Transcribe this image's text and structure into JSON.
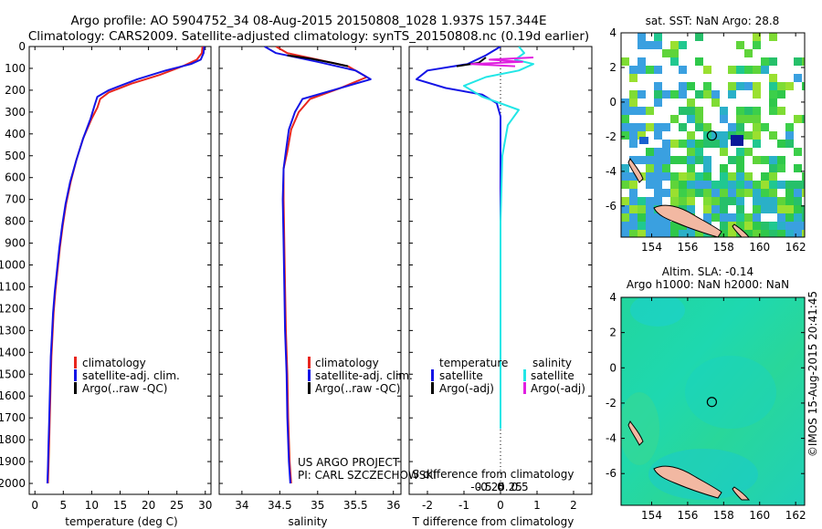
{
  "title_line1": "Argo profile: AO 5904752_34 08-Aug-2015 20150808_1028 1.937S 157.344E",
  "title_line2": "Climatology: CARS2009. Satellite-adjusted climatology: synTS_20150808.nc (0.19d earlier)",
  "credit_line1": "US ARGO PROJECT",
  "credit_line2": "PI: CARL SZCZECHOWSKI",
  "timestamp": "©IMOS 15-Aug-2015 20:41:45",
  "colors": {
    "clim": "#e8261e",
    "sat": "#1414e6",
    "argo": "#000000",
    "sal_sat": "#22e6e6",
    "sal_argo": "#e020e0"
  },
  "chart_data": [
    {
      "type": "line",
      "id": "temperature",
      "xlabel": "temperature (deg C)",
      "xlim": [
        -1,
        31
      ],
      "ylim": [
        0,
        2050
      ],
      "xticks": [
        0,
        5,
        10,
        15,
        20,
        25,
        30
      ],
      "yticks": [
        0,
        100,
        200,
        300,
        400,
        500,
        600,
        700,
        800,
        900,
        1000,
        1100,
        1200,
        1300,
        1400,
        1500,
        1600,
        1700,
        1800,
        1900,
        2000
      ],
      "legend": [
        "climatology",
        "satellite-adj. clim.",
        "Argo(..raw -QC)"
      ],
      "series": [
        {
          "name": "climatology",
          "color": "clim",
          "points": [
            [
              29.5,
              0
            ],
            [
              29.4,
              30
            ],
            [
              28.5,
              60
            ],
            [
              26,
              90
            ],
            [
              22,
              130
            ],
            [
              17,
              170
            ],
            [
              13,
              210
            ],
            [
              11.5,
              240
            ],
            [
              11,
              280
            ],
            [
              10,
              330
            ],
            [
              8.5,
              420
            ],
            [
              7.3,
              520
            ],
            [
              6.3,
              620
            ],
            [
              5.5,
              720
            ],
            [
              4.9,
              820
            ],
            [
              4.4,
              920
            ],
            [
              4,
              1020
            ],
            [
              3.6,
              1120
            ],
            [
              3.3,
              1220
            ],
            [
              3.1,
              1320
            ],
            [
              2.9,
              1420
            ],
            [
              2.8,
              1520
            ],
            [
              2.7,
              1620
            ],
            [
              2.6,
              1720
            ],
            [
              2.5,
              1820
            ],
            [
              2.4,
              1920
            ],
            [
              2.3,
              2000
            ]
          ]
        },
        {
          "name": "satellite-adj. clim.",
          "color": "sat",
          "points": [
            [
              29.8,
              0
            ],
            [
              29.7,
              30
            ],
            [
              29.2,
              60
            ],
            [
              27.5,
              80
            ],
            [
              23,
              110
            ],
            [
              18,
              150
            ],
            [
              13,
              200
            ],
            [
              11,
              230
            ],
            [
              10.5,
              270
            ],
            [
              9.8,
              330
            ],
            [
              8.5,
              420
            ],
            [
              7.3,
              520
            ],
            [
              6.2,
              620
            ],
            [
              5.4,
              720
            ],
            [
              4.8,
              820
            ],
            [
              4.3,
              920
            ],
            [
              3.9,
              1020
            ],
            [
              3.5,
              1120
            ],
            [
              3.2,
              1220
            ],
            [
              3,
              1320
            ],
            [
              2.8,
              1420
            ],
            [
              2.7,
              1520
            ],
            [
              2.6,
              1620
            ],
            [
              2.5,
              1720
            ],
            [
              2.4,
              1820
            ],
            [
              2.3,
              1920
            ],
            [
              2.2,
              2000
            ]
          ]
        }
      ]
    },
    {
      "type": "line",
      "id": "salinity",
      "xlabel": "salinity",
      "xlim": [
        33.7,
        36.1
      ],
      "ylim": [
        0,
        2050
      ],
      "xticks": [
        34,
        34.5,
        35,
        35.5,
        36
      ],
      "legend": [
        "climatology",
        "satellite-adj. clim.",
        "Argo(..raw -QC)"
      ],
      "series": [
        {
          "name": "climatology",
          "color": "clim",
          "points": [
            [
              34.45,
              0
            ],
            [
              34.6,
              30
            ],
            [
              35.0,
              60
            ],
            [
              35.4,
              90
            ],
            [
              35.65,
              140
            ],
            [
              35.3,
              190
            ],
            [
              34.9,
              240
            ],
            [
              34.75,
              300
            ],
            [
              34.65,
              380
            ],
            [
              34.6,
              480
            ],
            [
              34.55,
              560
            ],
            [
              34.55,
              700
            ],
            [
              34.56,
              900
            ],
            [
              34.57,
              1100
            ],
            [
              34.58,
              1300
            ],
            [
              34.6,
              1500
            ],
            [
              34.61,
              1700
            ],
            [
              34.63,
              1900
            ],
            [
              34.65,
              2000
            ]
          ]
        },
        {
          "name": "satellite-adj. clim.",
          "color": "sat",
          "points": [
            [
              34.3,
              0
            ],
            [
              34.45,
              30
            ],
            [
              35.0,
              70
            ],
            [
              35.5,
              110
            ],
            [
              35.7,
              150
            ],
            [
              35.2,
              200
            ],
            [
              34.8,
              240
            ],
            [
              34.7,
              300
            ],
            [
              34.62,
              380
            ],
            [
              34.58,
              480
            ],
            [
              34.55,
              560
            ],
            [
              34.54,
              700
            ],
            [
              34.55,
              900
            ],
            [
              34.56,
              1100
            ],
            [
              34.57,
              1300
            ],
            [
              34.59,
              1500
            ],
            [
              34.6,
              1700
            ],
            [
              34.62,
              1900
            ],
            [
              34.64,
              2000
            ]
          ]
        },
        {
          "name": "Argo(..raw -QC)",
          "color": "argo",
          "points": [
            [
              34.6,
              40
            ],
            [
              34.9,
              55
            ],
            [
              35.2,
              75
            ],
            [
              35.4,
              90
            ]
          ]
        }
      ]
    },
    {
      "type": "line",
      "id": "difference",
      "xlabel": "T difference from climatology",
      "xlabel_top": "S difference from climatology",
      "xlim": [
        -2.5,
        2.5
      ],
      "ylim": [
        0,
        2050
      ],
      "xticks": [
        -2,
        -1,
        0,
        1,
        2
      ],
      "xticks_s": [
        -0.5,
        -0.25,
        0,
        0.25,
        0.5
      ],
      "legend_t": [
        "temperature",
        "satellite",
        "Argo(-adj)"
      ],
      "legend_s": [
        "salinity",
        "satellite",
        "Argo(-adj)"
      ],
      "series": [
        {
          "name": "T satellite",
          "color": "sat",
          "points": [
            [
              0,
              0
            ],
            [
              -0.4,
              40
            ],
            [
              -0.9,
              80
            ],
            [
              -2.0,
              110
            ],
            [
              -2.3,
              150
            ],
            [
              -1.5,
              190
            ],
            [
              -0.5,
              220
            ],
            [
              -0.1,
              260
            ],
            [
              0,
              320
            ],
            [
              0,
              1750
            ]
          ]
        },
        {
          "name": "T Argo(-adj)",
          "color": "argo",
          "points": [
            [
              -0.4,
              50
            ],
            [
              -0.6,
              75
            ],
            [
              -1.2,
              90
            ]
          ]
        },
        {
          "name": "S satellite",
          "color": "sal_sat",
          "points": [
            [
              0.5,
              0
            ],
            [
              0.65,
              30
            ],
            [
              0.4,
              60
            ],
            [
              0.9,
              80
            ],
            [
              0.5,
              110
            ],
            [
              -0.4,
              140
            ],
            [
              -1.0,
              180
            ],
            [
              -0.5,
              230
            ],
            [
              0.5,
              290
            ],
            [
              0.2,
              360
            ],
            [
              0.05,
              500
            ],
            [
              0,
              800
            ],
            [
              0,
              1750
            ]
          ]
        },
        {
          "name": "S Argo(-adj)",
          "color": "sal_argo",
          "points": [
            [
              0.9,
              50
            ],
            [
              -0.3,
              60
            ],
            [
              0.6,
              70
            ],
            [
              -0.8,
              80
            ],
            [
              0.4,
              90
            ]
          ]
        }
      ]
    },
    {
      "type": "heatmap",
      "id": "sst_map",
      "title": "sat. SST: NaN Argo: 28.8",
      "xlim": [
        152.3,
        162.5
      ],
      "ylim": [
        -7.8,
        4
      ],
      "xticks": [
        154,
        156,
        158,
        160,
        162
      ],
      "yticks": [
        4,
        2,
        0,
        -2,
        -4,
        -6
      ],
      "argo_lon": 157.344,
      "argo_lat": -1.937
    },
    {
      "type": "heatmap",
      "id": "sla_map",
      "title_line1": "Altim. SLA: -0.14",
      "title_line2": "Argo h1000: NaN h2000: NaN",
      "xlim": [
        152.3,
        162.5
      ],
      "ylim": [
        -7.8,
        4
      ],
      "xticks": [
        154,
        156,
        158,
        160,
        162
      ],
      "yticks": [
        4,
        2,
        0,
        -2,
        -4,
        -6
      ],
      "argo_lon": 157.344,
      "argo_lat": -1.937
    }
  ]
}
